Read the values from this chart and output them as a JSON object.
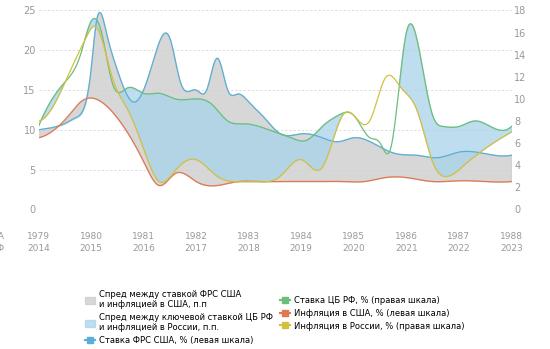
{
  "background_color": "#ffffff",
  "grid_color": "#cccccc",
  "yleft_range": [
    0,
    25
  ],
  "yright_range": [
    0,
    18
  ],
  "yticks_left": [
    0,
    5,
    10,
    15,
    20,
    25
  ],
  "yticks_right": [
    0,
    2,
    4,
    6,
    8,
    10,
    12,
    14,
    16,
    18
  ],
  "x_ticks_labels_usa": [
    "1979",
    "1980",
    "1981",
    "1982",
    "1983",
    "1984",
    "1985",
    "1986",
    "1987",
    "1988"
  ],
  "x_ticks_labels_rf": [
    "2014",
    "2015",
    "2016",
    "2017",
    "2018",
    "2019",
    "2020",
    "2021",
    "2022",
    "2023"
  ],
  "color_fed": "#5bafd6",
  "color_cbr": "#6bbf7a",
  "color_us_inflation": "#e07850",
  "color_ru_inflation": "#d4c040",
  "color_spread_usa": "#d0d0d0",
  "color_spread_rf": "#a8d4ea",
  "legend": {
    "spread_usa": "Спред между ставкой ФРС США\nи инфляцией в США, п.п",
    "spread_rf": "Спред между ключевой ставкой ЦБ РФ\nи инфляцией в России, п.п.",
    "fed": "Ставка ФРС США, % (левая шкала)",
    "cbr": "Ставка ЦБ РФ, % (правая шкала)",
    "us_inf": "Инфляция в США, % (левая шкала)",
    "ru_inf": "Инфляция в России, % (правая шкала)"
  },
  "fed_rate_x": [
    0.0,
    0.2,
    0.5,
    0.7,
    0.9,
    1.0,
    1.1,
    1.3,
    1.5,
    1.8,
    2.0,
    2.2,
    2.5,
    2.7,
    3.0,
    3.2,
    3.4,
    3.6,
    3.8,
    4.0,
    4.3,
    4.6,
    5.0,
    5.4,
    5.7,
    6.0,
    6.4,
    6.8,
    7.2,
    7.6,
    8.0,
    8.5,
    9.0
  ],
  "fed_rate_y": [
    10.0,
    10.2,
    10.8,
    11.5,
    13.5,
    17.5,
    23.5,
    22.0,
    17.5,
    13.5,
    15.0,
    19.0,
    21.5,
    16.0,
    15.0,
    15.0,
    19.0,
    15.0,
    14.5,
    13.5,
    11.5,
    9.5,
    9.5,
    9.0,
    8.5,
    9.0,
    8.2,
    7.0,
    6.8,
    6.5,
    7.2,
    7.0,
    6.8
  ],
  "us_inf_x": [
    0.0,
    0.3,
    0.6,
    0.8,
    1.0,
    1.2,
    1.5,
    1.8,
    2.0,
    2.3,
    2.6,
    3.0,
    3.4,
    3.8,
    4.2,
    4.6,
    5.0,
    5.4,
    5.8,
    6.2,
    6.6,
    7.0,
    7.5,
    8.0,
    8.5,
    9.0
  ],
  "us_inf_y": [
    9.0,
    10.0,
    12.0,
    13.5,
    14.0,
    13.5,
    11.5,
    8.5,
    6.0,
    3.0,
    4.5,
    3.5,
    3.0,
    3.5,
    3.5,
    3.5,
    3.5,
    3.5,
    3.5,
    3.5,
    4.0,
    4.0,
    3.5,
    3.6,
    3.5,
    3.5
  ],
  "cbr_rate_x": [
    0.0,
    0.2,
    0.5,
    0.8,
    1.0,
    1.2,
    1.4,
    1.7,
    2.0,
    2.3,
    2.6,
    3.0,
    3.3,
    3.6,
    3.9,
    4.2,
    4.5,
    4.8,
    5.1,
    5.4,
    5.7,
    6.0,
    6.3,
    6.5,
    6.7,
    7.0,
    7.3,
    7.5,
    7.7,
    8.0,
    8.3,
    8.6,
    9.0
  ],
  "cbr_rate_y_r": [
    7.5,
    9.5,
    11.5,
    14.0,
    17.0,
    16.0,
    11.5,
    11.0,
    10.5,
    10.5,
    10.0,
    10.0,
    9.5,
    8.0,
    7.75,
    7.5,
    7.0,
    6.5,
    6.25,
    7.5,
    8.5,
    8.5,
    6.5,
    6.0,
    5.5,
    16.0,
    13.0,
    8.5,
    7.5,
    7.5,
    8.0,
    7.5,
    7.5
  ],
  "ru_inf_x": [
    0.0,
    0.3,
    0.6,
    0.9,
    1.1,
    1.4,
    1.7,
    2.0,
    2.3,
    2.6,
    3.0,
    3.4,
    3.8,
    4.2,
    4.6,
    5.0,
    5.4,
    5.8,
    6.0,
    6.3,
    6.6,
    6.9,
    7.2,
    7.5,
    7.8,
    8.1,
    8.5,
    9.0
  ],
  "ru_inf_y_r": [
    8.0,
    9.5,
    12.5,
    15.5,
    16.5,
    12.0,
    9.0,
    5.5,
    2.5,
    3.5,
    4.5,
    3.0,
    2.5,
    2.5,
    3.0,
    4.5,
    3.8,
    8.6,
    8.5,
    8.0,
    11.9,
    11.0,
    9.0,
    4.3,
    3.0,
    4.0,
    5.5,
    7.0
  ]
}
